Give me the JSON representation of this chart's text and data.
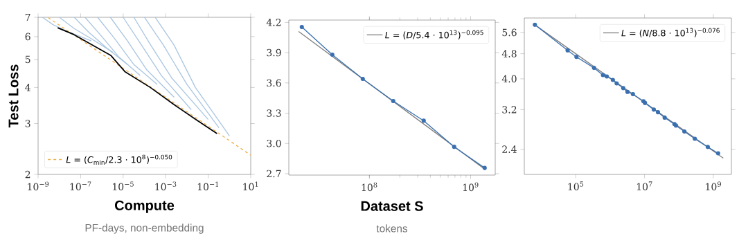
{
  "chart_data": [
    {
      "type": "line",
      "ylabel": "Test Loss",
      "xlabel": "Compute",
      "annotations": [
        "PF-days, non-embedding"
      ],
      "log": "xy",
      "legend": "bottom left",
      "xlim": [
        1e-09,
        10
      ],
      "ylim": [
        2,
        7
      ],
      "xticks": [
        {
          "value": 1e-09,
          "label": "10$^{−9}$"
        },
        {
          "value": 1e-07,
          "label": "10$^{−7}$"
        },
        {
          "value": 1e-05,
          "label": "10$^{−5}$"
        },
        {
          "value": 0.001,
          "label": "10$^{−3}$"
        },
        {
          "value": 0.1,
          "label": "10$^{−1}$"
        },
        {
          "value": 10,
          "label": "10$^{1}$"
        }
      ],
      "yticks": [
        2,
        3,
        4,
        5,
        6,
        7
      ],
      "series": [
        {
          "color": "#aac6e2",
          "x": [
            1.6e-09,
            5e-09,
            3.2e-08,
            3.2e-07
          ],
          "values": [
            7,
            6.6,
            6.2,
            5.8
          ]
        },
        {
          "color": "#aac6e2",
          "x": [
            1e-08,
            5e-08,
            3.2e-07,
            3.2e-06
          ],
          "values": [
            7,
            6.4,
            5.9,
            5.3
          ]
        },
        {
          "color": "#aac6e2",
          "x": [
            5e-08,
            2.5e-07,
            1.6e-06,
            1.6e-05
          ],
          "values": [
            7,
            6.2,
            5.5,
            4.8
          ]
        },
        {
          "color": "#aac6e2",
          "x": [
            1.6e-07,
            1e-06,
            6.3e-06,
            6.3e-05
          ],
          "values": [
            7,
            6.0,
            5.1,
            4.4
          ]
        },
        {
          "color": "#aac6e2",
          "x": [
            6.3e-07,
            4e-06,
            3.2e-05,
            0.0004
          ],
          "values": [
            7,
            5.9,
            4.8,
            4.1
          ]
        },
        {
          "color": "#aac6e2",
          "x": [
            2.5e-06,
            1.6e-05,
            0.00013,
            0.0025
          ],
          "values": [
            7,
            5.8,
            4.6,
            3.7
          ]
        },
        {
          "color": "#aac6e2",
          "x": [
            1e-05,
            6.3e-05,
            0.00063,
            0.016
          ],
          "values": [
            7,
            5.7,
            4.4,
            3.35
          ]
        },
        {
          "color": "#aac6e2",
          "x": [
            3.2e-05,
            0.0002,
            0.002,
            0.1
          ],
          "values": [
            7,
            5.6,
            4.3,
            3.1
          ]
        },
        {
          "color": "#aac6e2",
          "x": [
            0.0001,
            0.00079,
            0.01,
            0.32
          ],
          "values": [
            7,
            5.6,
            4.1,
            2.9
          ]
        },
        {
          "color": "#aac6e2",
          "x": [
            0.00032,
            0.0025,
            0.025,
            1
          ],
          "values": [
            7,
            5.6,
            4.0,
            2.72
          ]
        },
        {
          "name": "*L* = (*C*$_{min}$/2.3 · 10$^{8}$)$^{−0.050}$",
          "color": "#f0b04a",
          "line_style": "dashed",
          "x": [
            3e-09,
            1e-07,
            1e-05,
            0.001,
            0.1,
            10
          ],
          "values": [
            6.98,
            5.86,
            4.66,
            3.7,
            2.94,
            2.33
          ]
        },
        {
          "color": "#000000",
          "x": [
            8.3e-09,
            4.8e-08,
            2.6e-06,
            1.2e-05,
            0.00019,
            0.0022,
            0.028,
            0.26
          ],
          "values": [
            6.44,
            6.1,
            5.17,
            4.54,
            4.0,
            3.51,
            3.09,
            2.77
          ]
        }
      ]
    },
    {
      "type": "line",
      "xlabel": "Dataset S",
      "annotations": [
        "tokens"
      ],
      "log": "x",
      "legend": "top right",
      "xlim": [
        16000000.0,
        1750000000.0
      ],
      "ylim": [
        2.686,
        4.223
      ],
      "xticks": [
        {
          "value": 100000000.0,
          "label": "10$^{8}$"
        },
        {
          "value": 1000000000.0,
          "label": "10$^{9}$"
        }
      ],
      "yticks": [
        2.7,
        {
          "value": 3.0,
          "label": "3.0"
        },
        3.3,
        3.6,
        3.9,
        4.2
      ],
      "series": [
        {
          "name": "*L* = (*D*/5.4 · 10$^{13}$)$^{−0.095}$",
          "color": "#808080",
          "x": [
            20000000.0,
            1400000000.0
          ],
          "values": [
            4.11,
            2.74
          ]
        },
        {
          "color": "#3a70b0",
          "marker": "circle",
          "x": [
            21500000.0,
            43000000.0,
            86000000.0,
            172000000.0,
            344000000.0,
            688000000.0,
            1376000000.0
          ],
          "values": [
            4.154,
            3.88,
            3.64,
            3.42,
            3.225,
            2.966,
            2.757
          ]
        }
      ]
    },
    {
      "type": "line",
      "log": "xy",
      "legend": "top right",
      "xlim": [
        3200.0,
        3350000000.0
      ],
      "ylim": [
        2.0,
        6.22
      ],
      "xticks": [
        {
          "value": 100000.0,
          "label": "10$^{5}$"
        },
        {
          "value": 10000000.0,
          "label": "10$^{7}$"
        },
        {
          "value": 1000000000.0,
          "label": "10$^{9}$"
        }
      ],
      "yticks": [
        2.4,
        3.2,
        {
          "value": 4.0,
          "label": "4.0"
        },
        4.8,
        5.6
      ],
      "series": [
        {
          "name": "*L* = (*N*/8.8 · 10$^{13}$)$^{−0.076}$",
          "color": "#808080",
          "x": [
            6500.0,
            1950000000.0
          ],
          "values": [
            5.92,
            2.25
          ]
        },
        {
          "color": "#3a70b0",
          "marker": "circle",
          "x": [
            6500.0,
            58000.0,
            105000.0,
            340000.0,
            620000.0,
            800000.0,
            1200000.0,
            1550000.0,
            2400000.0,
            3200000.0,
            4600000.0,
            9300000.0,
            10300000.0,
            18600000.0,
            24600000.0,
            38500000.0,
            74000000.0,
            82000000.0,
            144000000.0,
            290000000.0,
            690000000.0,
            1380000000.0
          ],
          "values": [
            5.92,
            4.92,
            4.69,
            4.33,
            4.11,
            4.07,
            3.97,
            3.87,
            3.74,
            3.64,
            3.58,
            3.4,
            3.36,
            3.2,
            3.14,
            3.02,
            2.88,
            2.85,
            2.73,
            2.59,
            2.44,
            2.33
          ]
        }
      ]
    }
  ]
}
